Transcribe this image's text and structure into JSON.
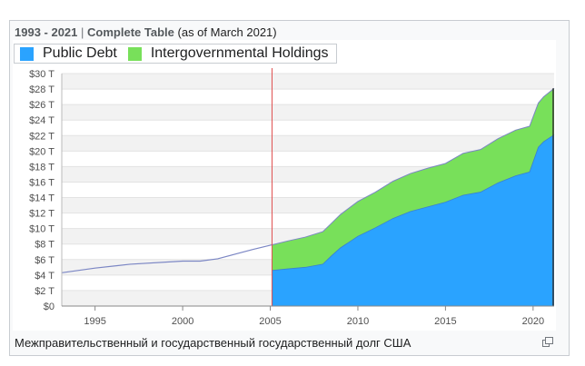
{
  "header": {
    "range": "1993 - 2021",
    "separator": "|",
    "table_link": "Complete Table",
    "as_of": "(as of March 2021)"
  },
  "legend": [
    {
      "label": "Public Debt",
      "color": "#2aa3ff"
    },
    {
      "label": "Intergovernmental Holdings",
      "color": "#78e05a"
    }
  ],
  "caption": "Межправительственный и государственный государственный долг США",
  "icons": {
    "expand": "expand-icon"
  },
  "chart_data": {
    "type": "area",
    "stacked": true,
    "x_ticks": [
      "1995",
      "2000",
      "2005",
      "2010",
      "2015",
      "2020"
    ],
    "y_ticks": [
      "$0",
      "$2 T",
      "$4 T",
      "$6 T",
      "$8 T",
      "$10 T",
      "$12 T",
      "$14 T",
      "$16 T",
      "$18 T",
      "$20 T",
      "$22 T",
      "$24 T",
      "$26 T",
      "$28 T",
      "$30 T"
    ],
    "xlim": [
      1993.1,
      2021.2
    ],
    "ylim": [
      0,
      30
    ],
    "marker_year": 2005.1,
    "total_debt_pre2005": {
      "x": [
        1993.1,
        1995,
        1997,
        2000,
        2001,
        2002,
        2003,
        2004,
        2005.1
      ],
      "y": [
        4.3,
        4.9,
        5.4,
        5.8,
        5.8,
        6.1,
        6.7,
        7.3,
        7.9
      ]
    },
    "series": [
      {
        "name": "Public Debt",
        "color": "#2aa3ff",
        "x": [
          2005.1,
          2006,
          2007,
          2008,
          2008.5,
          2009,
          2010,
          2011,
          2012,
          2013,
          2014,
          2015,
          2016,
          2017,
          2018,
          2019,
          2019.8,
          2020.3,
          2020.6,
          2021.2
        ],
        "y": [
          4.6,
          4.8,
          5.0,
          5.4,
          6.5,
          7.5,
          9.0,
          10.1,
          11.3,
          12.2,
          12.8,
          13.4,
          14.3,
          14.7,
          15.9,
          16.8,
          17.3,
          20.5,
          21.2,
          22.1
        ]
      },
      {
        "name": "Intergovernmental Holdings",
        "color": "#78e05a",
        "x": [
          2005.1,
          2006,
          2007,
          2008,
          2008.5,
          2009,
          2010,
          2011,
          2012,
          2013,
          2014,
          2015,
          2016,
          2017,
          2018,
          2019,
          2019.8,
          2020.3,
          2020.6,
          2021.2
        ],
        "y": [
          3.3,
          3.6,
          3.9,
          4.2,
          4.2,
          4.3,
          4.5,
          4.6,
          4.8,
          4.9,
          5.0,
          5.0,
          5.4,
          5.5,
          5.7,
          5.9,
          5.9,
          5.7,
          5.8,
          6.0
        ]
      }
    ]
  }
}
